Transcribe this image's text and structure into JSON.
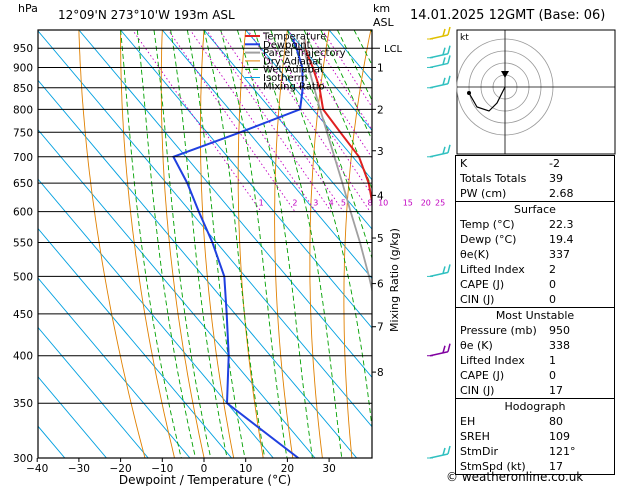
{
  "header": {
    "hpa_label": "hPa",
    "location": "12°09'N  273°10'W  193m  ASL",
    "km_label": "km",
    "asl_label": "ASL",
    "datetime": "14.01.2025  12GMT  (Base: 06)"
  },
  "credit": "© weatheronline.co.uk",
  "colors": {
    "temperature": "#e02020",
    "dewpoint": "#2040e0",
    "parcel": "#a0a0a0",
    "dry_adiabat": "#e08000",
    "wet_adiabat": "#00a000",
    "isotherm": "#00a0e0",
    "mixing_ratio": "#c000c0"
  },
  "chart_data": {
    "type": "line",
    "xlabel": "Dewpoint / Temperature (°C)",
    "ylabel_right": "Mixing Ratio (g/kg)",
    "ylabel_left": "hPa",
    "xlim": [
      -40,
      40
    ],
    "x_ticks": [
      -40,
      -30,
      -20,
      -10,
      0,
      10,
      20,
      30
    ],
    "y_scale": "log",
    "ylim": [
      1000,
      300
    ],
    "pressure_ticks": [
      300,
      350,
      400,
      450,
      500,
      550,
      600,
      650,
      700,
      750,
      800,
      850,
      900,
      950
    ],
    "km_ticks": [
      {
        "label": "8",
        "p": 382
      },
      {
        "label": "7",
        "p": 434
      },
      {
        "label": "6",
        "p": 490
      },
      {
        "label": "5",
        "p": 557
      },
      {
        "label": "4",
        "p": 628
      },
      {
        "label": "3",
        "p": 712
      },
      {
        "label": "2",
        "p": 800
      },
      {
        "label": "1",
        "p": 900
      }
    ],
    "lcl": {
      "label": "LCL",
      "p": 950
    },
    "mixing_ratio_labels": [
      "1",
      "2",
      "3",
      "4",
      "5",
      "8",
      "10",
      "15",
      "20",
      "25"
    ],
    "mixing_ratio_values": [
      1,
      2,
      3,
      4,
      5,
      8,
      10,
      15,
      20,
      25
    ],
    "legend": [
      "Temperature",
      "Dewpoint",
      "Parcel Trajectory",
      "Dry Adiabat",
      "Wet Adiabat",
      "Isotherm",
      "Mixing Ratio"
    ],
    "series": [
      {
        "name": "Temperature",
        "p": [
          975,
          950,
          900,
          850,
          800,
          750,
          700,
          650,
          600,
          550,
          500,
          450,
          400,
          350,
          300
        ],
        "t": [
          22.3,
          20.5,
          18.5,
          16,
          12.5,
          12,
          11.5,
          8.5,
          4,
          -1,
          -6,
          -11,
          -17,
          -26,
          -36
        ]
      },
      {
        "name": "Dewpoint",
        "p": [
          975,
          950,
          900,
          850,
          800,
          750,
          700,
          650,
          600,
          550,
          500,
          450,
          400,
          350,
          300
        ],
        "t": [
          19.4,
          18.5,
          16,
          12,
          7,
          -12,
          -33,
          -35,
          -38,
          -41,
          -45,
          -52,
          -60,
          -70,
          -64
        ]
      },
      {
        "name": "Parcel Trajectory",
        "p": [
          975,
          950,
          900,
          850,
          800,
          750,
          700,
          650,
          600,
          550,
          500,
          450,
          400,
          350,
          300
        ],
        "t": [
          22.3,
          20.3,
          17.5,
          14.7,
          11.8,
          8.8,
          5.6,
          2.2,
          -1.6,
          -5.6,
          -10.3,
          -15.8,
          -22.3,
          -30,
          -40
        ]
      }
    ]
  },
  "hodograph": {
    "label": "kt",
    "u": [
      0,
      -4,
      -8,
      -14,
      -18
    ],
    "v": [
      0,
      -8,
      -12,
      -10,
      -3
    ]
  },
  "wind_barbs": [
    {
      "p": 300,
      "color": "#30c0c0"
    },
    {
      "p": 400,
      "color": "#8000a0"
    },
    {
      "p": 500,
      "color": "#30c0c0"
    },
    {
      "p": 700,
      "color": "#30c0c0"
    },
    {
      "p": 850,
      "color": "#30c0c0"
    },
    {
      "p": 900,
      "color": "#30c0c0"
    },
    {
      "p": 925,
      "color": "#30c0c0"
    },
    {
      "p": 975,
      "color": "#e0c000"
    }
  ],
  "indices": {
    "basic": [
      {
        "key": "K",
        "val": "-2"
      },
      {
        "key": "Totals Totals",
        "val": "39"
      },
      {
        "key": "PW (cm)",
        "val": "2.68"
      }
    ],
    "surface_title": "Surface",
    "surface": [
      {
        "key": "Temp (°C)",
        "val": "22.3"
      },
      {
        "key": "Dewp (°C)",
        "val": "19.4"
      },
      {
        "key": "θe(K)",
        "val": "337"
      },
      {
        "key": "Lifted Index",
        "val": "2"
      },
      {
        "key": "CAPE (J)",
        "val": "0"
      },
      {
        "key": "CIN (J)",
        "val": "0"
      }
    ],
    "mu_title": "Most Unstable",
    "mu": [
      {
        "key": "Pressure (mb)",
        "val": "950"
      },
      {
        "key": "θe (K)",
        "val": "338"
      },
      {
        "key": "Lifted Index",
        "val": "1"
      },
      {
        "key": "CAPE (J)",
        "val": "0"
      },
      {
        "key": "CIN (J)",
        "val": "17"
      }
    ],
    "hodo_title": "Hodograph",
    "hodo": [
      {
        "key": "EH",
        "val": "80"
      },
      {
        "key": "SREH",
        "val": "109"
      },
      {
        "key": "StmDir",
        "val": "121°"
      },
      {
        "key": "StmSpd (kt)",
        "val": "17"
      }
    ]
  }
}
